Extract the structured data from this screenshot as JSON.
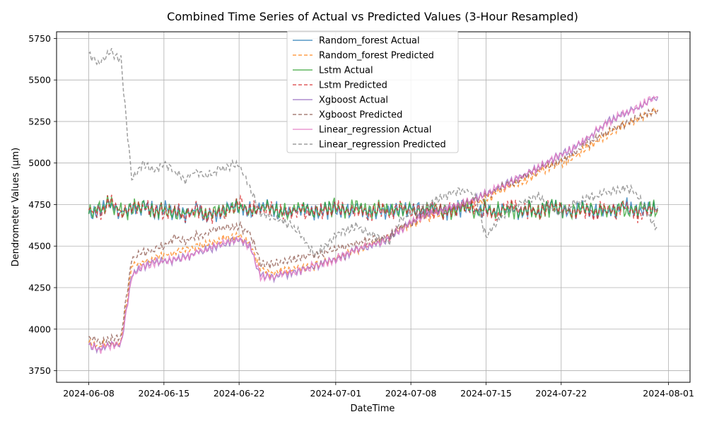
{
  "chart_data": {
    "type": "line",
    "title": "Combined Time Series of Actual vs Predicted Values (3-Hour Resampled)",
    "xlabel": "DateTime",
    "ylabel": "Dendrometer Values (μm)",
    "x_ticks": [
      "2024-06-08",
      "2024-06-15",
      "2024-06-22",
      "2024-07-01",
      "2024-07-08",
      "2024-07-15",
      "2024-07-22",
      "2024-08-01"
    ],
    "y_ticks": [
      3750,
      4000,
      4250,
      4500,
      4750,
      5000,
      5250,
      5500,
      5750
    ],
    "x_range": [
      "2024-06-05",
      "2024-08-03"
    ],
    "ylim": [
      3680,
      5790
    ],
    "grid": true,
    "legend_position": "upper-center",
    "x": [
      "2024-06-08",
      "2024-06-09",
      "2024-06-10",
      "2024-06-11",
      "2024-06-12",
      "2024-06-13",
      "2024-06-14",
      "2024-06-15",
      "2024-06-16",
      "2024-06-17",
      "2024-06-18",
      "2024-06-19",
      "2024-06-20",
      "2024-06-21",
      "2024-06-22",
      "2024-06-23",
      "2024-06-24",
      "2024-06-25",
      "2024-06-26",
      "2024-06-27",
      "2024-06-28",
      "2024-06-29",
      "2024-06-30",
      "2024-07-01",
      "2024-07-02",
      "2024-07-03",
      "2024-07-04",
      "2024-07-05",
      "2024-07-06",
      "2024-07-07",
      "2024-07-08",
      "2024-07-09",
      "2024-07-10",
      "2024-07-11",
      "2024-07-12",
      "2024-07-13",
      "2024-07-14",
      "2024-07-15",
      "2024-07-16",
      "2024-07-17",
      "2024-07-18",
      "2024-07-19",
      "2024-07-20",
      "2024-07-21",
      "2024-07-22",
      "2024-07-23",
      "2024-07-24",
      "2024-07-25",
      "2024-07-26",
      "2024-07-27",
      "2024-07-28",
      "2024-07-29",
      "2024-07-30",
      "2024-07-31"
    ],
    "series": [
      {
        "name": "Random_forest Actual",
        "color": "#1f77b4",
        "dashed": false,
        "values": [
          4700,
          4720,
          4760,
          4700,
          4730,
          4740,
          4710,
          4720,
          4700,
          4690,
          4720,
          4680,
          4700,
          4720,
          4740,
          4710,
          4720,
          4730,
          4700,
          4710,
          4720,
          4700,
          4710,
          4730,
          4710,
          4740,
          4700,
          4720,
          4710,
          4730,
          4720,
          4710,
          4730,
          4700,
          4720,
          4740,
          4710,
          4720,
          4700,
          4730,
          4710,
          4720,
          4700,
          4740,
          4720,
          4710,
          4730,
          4700,
          4720,
          4710,
          4740,
          4700,
          4720,
          4730
        ]
      },
      {
        "name": "Random_forest Predicted",
        "color": "#ff7f0e",
        "dashed": true,
        "values": [
          3920,
          3900,
          3910,
          3920,
          4380,
          4400,
          4420,
          4450,
          4460,
          4480,
          4500,
          4520,
          4530,
          4550,
          4560,
          4520,
          4360,
          4340,
          4350,
          4360,
          4370,
          4380,
          4400,
          4420,
          4450,
          4480,
          4500,
          4520,
          4550,
          4600,
          4630,
          4660,
          4680,
          4700,
          4720,
          4740,
          4760,
          4780,
          4820,
          4860,
          4880,
          4900,
          4950,
          4980,
          5000,
          5030,
          5080,
          5120,
          5160,
          5200,
          5230,
          5260,
          5290,
          5320
        ]
      },
      {
        "name": "Lstm Actual",
        "color": "#2ca02c",
        "dashed": false,
        "values": [
          4690,
          4730,
          4750,
          4710,
          4720,
          4750,
          4700,
          4730,
          4690,
          4700,
          4710,
          4690,
          4710,
          4730,
          4750,
          4700,
          4730,
          4720,
          4710,
          4700,
          4730,
          4690,
          4720,
          4740,
          4700,
          4750,
          4710,
          4730,
          4720,
          4720,
          4730,
          4700,
          4740,
          4710,
          4710,
          4750,
          4700,
          4730,
          4710,
          4720,
          4700,
          4730,
          4710,
          4730,
          4730,
          4700,
          4740,
          4710,
          4710,
          4720,
          4730,
          4710,
          4730,
          4720
        ]
      },
      {
        "name": "Lstm Predicted",
        "color": "#d62728",
        "dashed": true,
        "values": [
          4710,
          4700,
          4770,
          4690,
          4740,
          4730,
          4720,
          4710,
          4710,
          4680,
          4730,
          4670,
          4690,
          4710,
          4760,
          4720,
          4710,
          4740,
          4690,
          4720,
          4710,
          4710,
          4700,
          4740,
          4720,
          4730,
          4690,
          4710,
          4700,
          4740,
          4710,
          4720,
          4720,
          4690,
          4730,
          4730,
          4720,
          4710,
          4690,
          4740,
          4720,
          4710,
          4690,
          4750,
          4710,
          4720,
          4720,
          4690,
          4730,
          4700,
          4750,
          4690,
          4710,
          4740
        ]
      },
      {
        "name": "Xgboost Actual",
        "color": "#9467bd",
        "dashed": false,
        "values": [
          3900,
          3880,
          3900,
          3910,
          4320,
          4380,
          4400,
          4410,
          4420,
          4430,
          4460,
          4480,
          4500,
          4520,
          4540,
          4500,
          4320,
          4310,
          4330,
          4340,
          4360,
          4380,
          4400,
          4420,
          4450,
          4480,
          4500,
          4520,
          4550,
          4600,
          4640,
          4680,
          4700,
          4720,
          4740,
          4760,
          4790,
          4810,
          4850,
          4880,
          4910,
          4940,
          4980,
          5020,
          5050,
          5080,
          5130,
          5180,
          5230,
          5270,
          5300,
          5330,
          5370,
          5400
        ]
      },
      {
        "name": "Xgboost Predicted",
        "color": "#8c564b",
        "dashed": true,
        "values": [
          3950,
          3920,
          3940,
          3960,
          4420,
          4460,
          4480,
          4500,
          4550,
          4530,
          4560,
          4580,
          4600,
          4610,
          4620,
          4580,
          4400,
          4390,
          4410,
          4420,
          4440,
          4450,
          4460,
          4480,
          4500,
          4520,
          4530,
          4550,
          4570,
          4610,
          4640,
          4680,
          4700,
          4720,
          4740,
          4760,
          4780,
          4800,
          4840,
          4870,
          4900,
          4930,
          4960,
          4990,
          5020,
          5050,
          5100,
          5140,
          5180,
          5210,
          5240,
          5270,
          5300,
          5320
        ]
      },
      {
        "name": "Linear_regression Actual",
        "color": "#e377c2",
        "dashed": false,
        "values": [
          3900,
          3880,
          3900,
          3910,
          4320,
          4380,
          4400,
          4410,
          4420,
          4430,
          4460,
          4480,
          4500,
          4520,
          4540,
          4500,
          4320,
          4310,
          4330,
          4340,
          4360,
          4380,
          4400,
          4420,
          4450,
          4480,
          4500,
          4520,
          4550,
          4600,
          4640,
          4680,
          4700,
          4720,
          4740,
          4760,
          4790,
          4810,
          4850,
          4880,
          4910,
          4940,
          4980,
          5020,
          5050,
          5080,
          5130,
          5180,
          5230,
          5270,
          5300,
          5330,
          5370,
          5400
        ]
      },
      {
        "name": "Linear_regression Predicted",
        "color": "#7f7f7f",
        "dashed": true,
        "values": [
          5650,
          5600,
          5680,
          5620,
          4900,
          5000,
          4950,
          5000,
          4950,
          4900,
          4950,
          4920,
          4960,
          4980,
          5000,
          4850,
          4700,
          4680,
          4650,
          4620,
          4550,
          4450,
          4500,
          4560,
          4600,
          4620,
          4580,
          4550,
          4520,
          4650,
          4700,
          4720,
          4760,
          4800,
          4820,
          4850,
          4800,
          4550,
          4650,
          4700,
          4750,
          4780,
          4800,
          4720,
          4700,
          4750,
          4780,
          4800,
          4820,
          4830,
          4850,
          4820,
          4700,
          4600
        ]
      }
    ]
  }
}
